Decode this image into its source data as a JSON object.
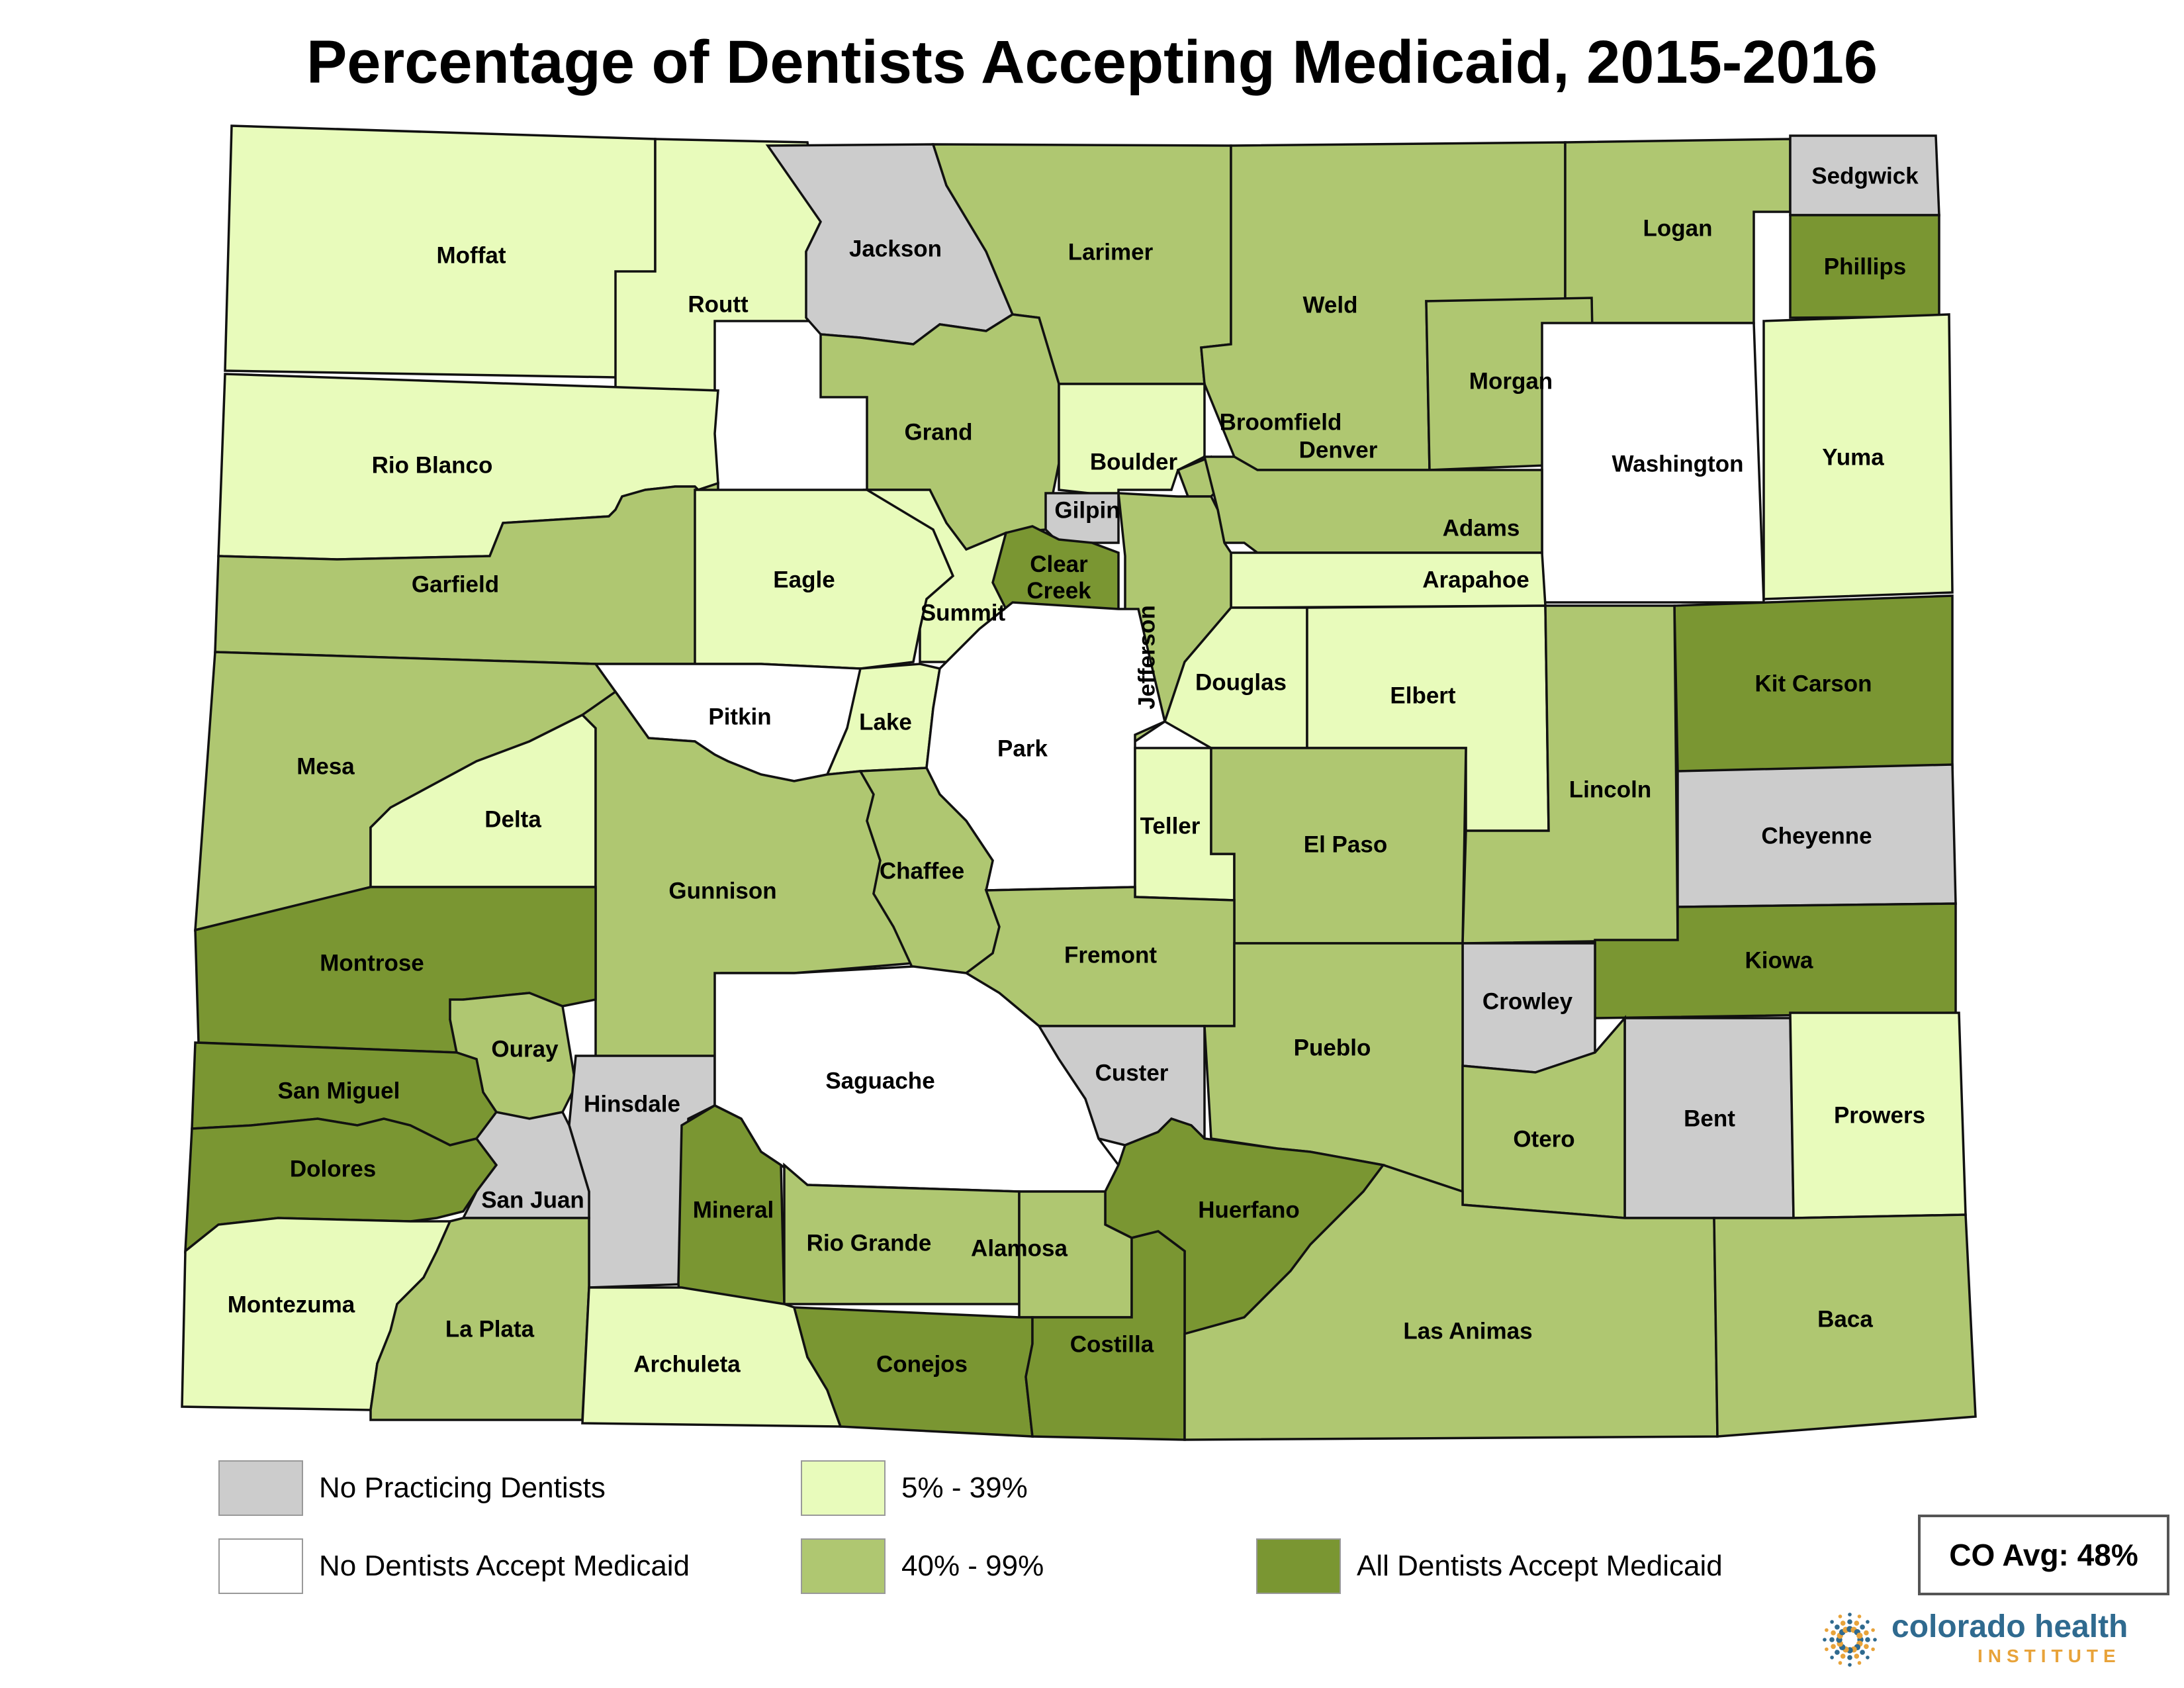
{
  "title": "Percentage of Dentists Accepting Medicaid, 2015-2016",
  "categories": {
    "none": {
      "label": "No Practicing Dentists",
      "color": "#cccccc"
    },
    "zero": {
      "label": "No Dentists Accept Medicaid",
      "color": "#ffffff"
    },
    "low": {
      "label": "5% - 39%",
      "color": "#e8fbbb"
    },
    "mid": {
      "label": "40% - 99%",
      "color": "#afc771"
    },
    "all": {
      "label": "All Dentists Accept Medicaid",
      "color": "#7a9632"
    }
  },
  "counties": [
    {
      "name": "Moffat",
      "cat": "low"
    },
    {
      "name": "Routt",
      "cat": "low"
    },
    {
      "name": "Jackson",
      "cat": "none"
    },
    {
      "name": "Larimer",
      "cat": "mid"
    },
    {
      "name": "Weld",
      "cat": "mid"
    },
    {
      "name": "Logan",
      "cat": "mid"
    },
    {
      "name": "Sedgwick",
      "cat": "none"
    },
    {
      "name": "Phillips",
      "cat": "all"
    },
    {
      "name": "Rio Blanco",
      "cat": "low"
    },
    {
      "name": "Garfield",
      "cat": "mid"
    },
    {
      "name": "Grand",
      "cat": "mid"
    },
    {
      "name": "Boulder",
      "cat": "low"
    },
    {
      "name": "Broomfield",
      "cat": "mid"
    },
    {
      "name": "Morgan",
      "cat": "mid"
    },
    {
      "name": "Washington",
      "cat": "zero"
    },
    {
      "name": "Yuma",
      "cat": "low"
    },
    {
      "name": "Eagle",
      "cat": "low"
    },
    {
      "name": "Summit",
      "cat": "low"
    },
    {
      "name": "Gilpin",
      "cat": "none"
    },
    {
      "name": "Clear Creek",
      "cat": "all"
    },
    {
      "name": "Denver",
      "cat": "mid"
    },
    {
      "name": "Adams",
      "cat": "mid"
    },
    {
      "name": "Arapahoe",
      "cat": "low"
    },
    {
      "name": "Jefferson",
      "cat": "mid"
    },
    {
      "name": "Mesa",
      "cat": "mid"
    },
    {
      "name": "Pitkin",
      "cat": "zero"
    },
    {
      "name": "Lake",
      "cat": "low"
    },
    {
      "name": "Park",
      "cat": "zero"
    },
    {
      "name": "Douglas",
      "cat": "low"
    },
    {
      "name": "Elbert",
      "cat": "low"
    },
    {
      "name": "Kit Carson",
      "cat": "all"
    },
    {
      "name": "Delta",
      "cat": "low"
    },
    {
      "name": "Gunnison",
      "cat": "mid"
    },
    {
      "name": "Chaffee",
      "cat": "mid"
    },
    {
      "name": "Teller",
      "cat": "low"
    },
    {
      "name": "El Paso",
      "cat": "mid"
    },
    {
      "name": "Lincoln",
      "cat": "mid"
    },
    {
      "name": "Cheyenne",
      "cat": "none"
    },
    {
      "name": "Montrose",
      "cat": "all"
    },
    {
      "name": "Fremont",
      "cat": "mid"
    },
    {
      "name": "Kiowa",
      "cat": "all"
    },
    {
      "name": "Ouray",
      "cat": "mid"
    },
    {
      "name": "Crowley",
      "cat": "none"
    },
    {
      "name": "San Miguel",
      "cat": "all"
    },
    {
      "name": "Hinsdale",
      "cat": "none"
    },
    {
      "name": "Saguache",
      "cat": "zero"
    },
    {
      "name": "Custer",
      "cat": "none"
    },
    {
      "name": "Pueblo",
      "cat": "mid"
    },
    {
      "name": "Bent",
      "cat": "none"
    },
    {
      "name": "Prowers",
      "cat": "low"
    },
    {
      "name": "Otero",
      "cat": "mid"
    },
    {
      "name": "Dolores",
      "cat": "all"
    },
    {
      "name": "San Juan",
      "cat": "none"
    },
    {
      "name": "Mineral",
      "cat": "all"
    },
    {
      "name": "Huerfano",
      "cat": "all"
    },
    {
      "name": "Rio Grande",
      "cat": "mid"
    },
    {
      "name": "Alamosa",
      "cat": "mid"
    },
    {
      "name": "Montezuma",
      "cat": "low"
    },
    {
      "name": "La Plata",
      "cat": "mid"
    },
    {
      "name": "Archuleta",
      "cat": "low"
    },
    {
      "name": "Conejos",
      "cat": "all"
    },
    {
      "name": "Costilla",
      "cat": "all"
    },
    {
      "name": "Las Animas",
      "cat": "mid"
    },
    {
      "name": "Baca",
      "cat": "mid"
    }
  ],
  "avg": "CO Avg: 48%",
  "logo": {
    "line1": "colorado health",
    "line2": "INSTITUTE",
    "icon": "starburst-icon"
  }
}
